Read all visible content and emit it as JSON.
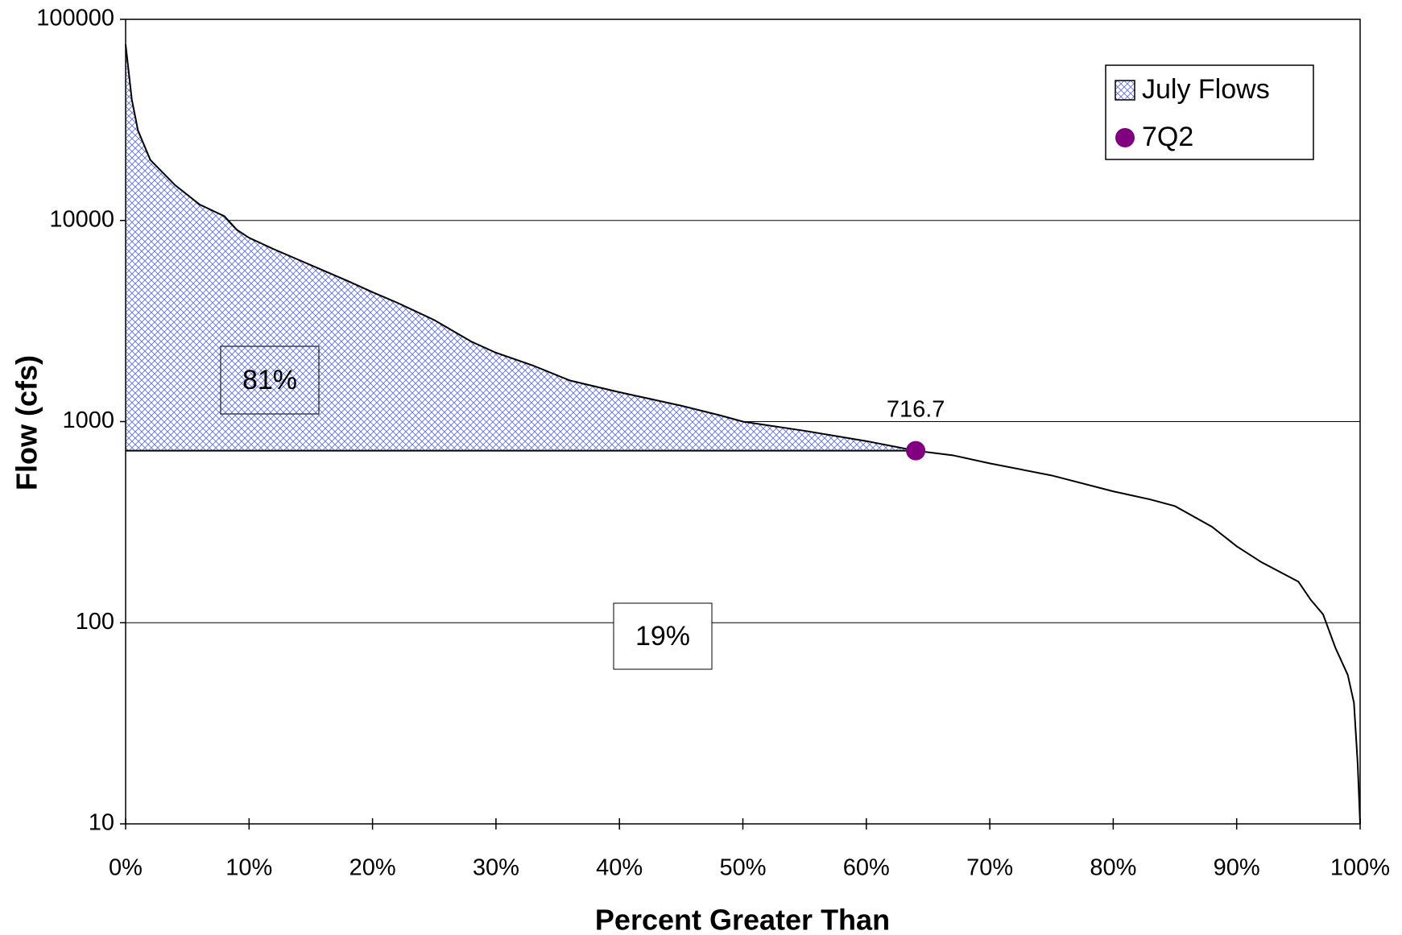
{
  "chart_data": {
    "type": "line",
    "xlabel": "Percent Greater Than",
    "ylabel": "Flow (cfs)",
    "series": [
      {
        "name": "July Flows",
        "color": "#000000",
        "fill": "#4a5bd6",
        "x": [
          0,
          0.5,
          1,
          2,
          4,
          6,
          8,
          9,
          10,
          12,
          15,
          18,
          20,
          22,
          25,
          28,
          30,
          33,
          36,
          40,
          45,
          48,
          50,
          55,
          60,
          64,
          67,
          70,
          75,
          80,
          83,
          85,
          88,
          90,
          92,
          95,
          96,
          97,
          98,
          99,
          99.5,
          99.8,
          100
        ],
        "values": [
          75000,
          40000,
          28000,
          20000,
          15000,
          12000,
          10500,
          9000,
          8200,
          7200,
          6000,
          5000,
          4400,
          3900,
          3200,
          2500,
          2200,
          1900,
          1600,
          1400,
          1200,
          1080,
          1000,
          900,
          800,
          716.7,
          680,
          620,
          540,
          450,
          410,
          380,
          300,
          240,
          200,
          160,
          130,
          110,
          75,
          55,
          40,
          20,
          10
        ]
      },
      {
        "name": "7Q2",
        "color": "#800080",
        "x": [
          64
        ],
        "values": [
          716.7
        ]
      }
    ],
    "annotations": [
      "81%",
      "19%"
    ],
    "xlim": [
      0,
      100
    ],
    "xticks": [
      {
        "value": 0,
        "label": "0%"
      },
      {
        "value": 10,
        "label": "10%"
      },
      {
        "value": 20,
        "label": "20%"
      },
      {
        "value": 30,
        "label": "30%"
      },
      {
        "value": 40,
        "label": "40%"
      },
      {
        "value": 50,
        "label": "50%"
      },
      {
        "value": 60,
        "label": "60%"
      },
      {
        "value": 70,
        "label": "70%"
      },
      {
        "value": 80,
        "label": "80%"
      },
      {
        "value": 90,
        "label": "90%"
      },
      {
        "value": 100,
        "label": "100%"
      }
    ],
    "ylim": [
      10,
      100000
    ],
    "yticks": [
      10,
      100,
      1000,
      10000,
      100000
    ],
    "log_y": true,
    "grid": true,
    "legend": "upper right"
  }
}
